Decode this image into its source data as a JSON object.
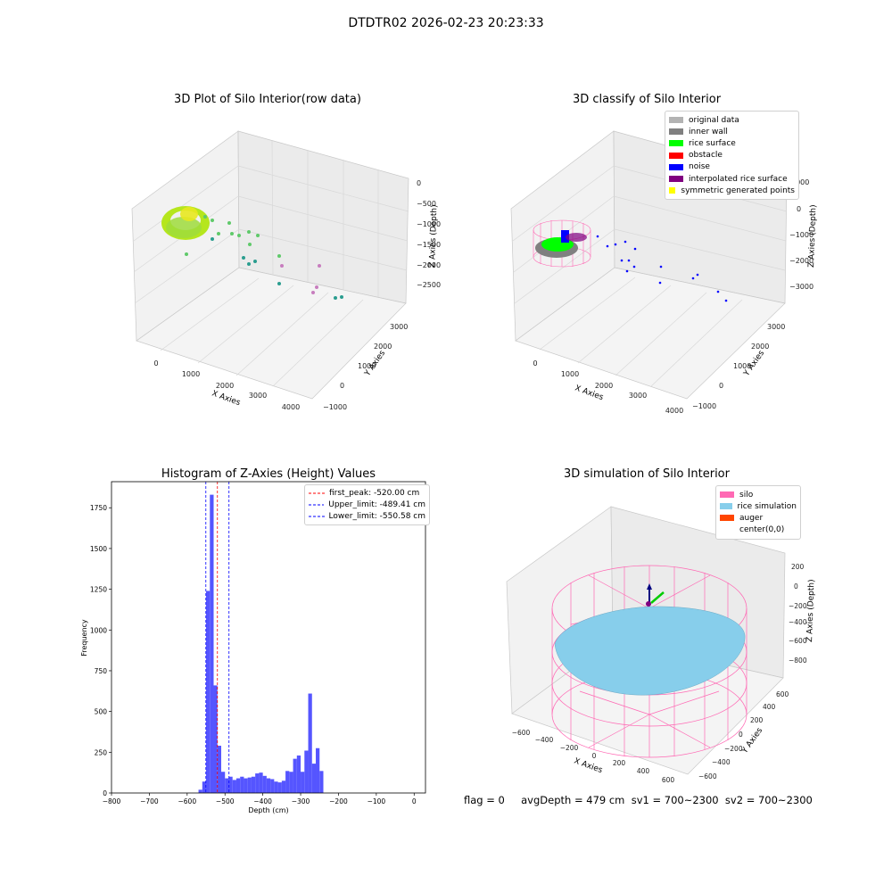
{
  "suptitle": "DTDTR02 2026-02-23 20:23:33",
  "panels": {
    "raw": {
      "title": "3D Plot of Silo Interior(row data)",
      "xlabel": "X Axies",
      "ylabel": "Y Axies",
      "zlabel": "Z Axies (Depth)",
      "xticks": [
        "0",
        "1000",
        "2000",
        "3000",
        "4000"
      ],
      "yticks": [
        "−1000",
        "0",
        "1000",
        "2000",
        "3000"
      ],
      "zticks": [
        "0",
        "−500",
        "−1000",
        "−1500",
        "−2000",
        "−2500"
      ]
    },
    "classify": {
      "title": "3D classify of Silo Interior",
      "xlabel": "X Axies",
      "ylabel": "Y Axies",
      "zlabel": "Z Axies (Depth)",
      "xticks": [
        "0",
        "1000",
        "2000",
        "3000",
        "4000"
      ],
      "yticks": [
        "−1000",
        "0",
        "1000",
        "2000",
        "3000"
      ],
      "zticks": [
        "1000",
        "0",
        "−1000",
        "−2000",
        "−3000"
      ],
      "legend": [
        {
          "label": "original data",
          "color": "#b3b3b3"
        },
        {
          "label": "inner wall",
          "color": "#808080"
        },
        {
          "label": "rice surface",
          "color": "#00ff00"
        },
        {
          "label": "obstacle",
          "color": "#ff0000"
        },
        {
          "label": "noise",
          "color": "#0000ff"
        },
        {
          "label": "interpolated rice surface",
          "color": "#800080"
        },
        {
          "label": "symmetric generated points",
          "color": "#ffff00"
        }
      ]
    },
    "histogram": {
      "title": "Histogram of Z-Axies (Height) Values",
      "legend": [
        {
          "label": "first_peak: -520.00 cm",
          "color": "#ff0000"
        },
        {
          "label": "Upper_limit: -489.41 cm",
          "color": "#0000ff"
        },
        {
          "label": "Lower_limit: -550.58 cm",
          "color": "#0000ff"
        }
      ]
    },
    "simulation": {
      "title": "3D simulation of Silo Interior",
      "xlabel": "X Axies",
      "ylabel": "Y Axies",
      "zlabel": "Z Axies (Depth)",
      "xticks": [
        "−600",
        "−400",
        "−200",
        "0",
        "200",
        "400",
        "600"
      ],
      "yticks": [
        "−600",
        "−400",
        "−200",
        "0",
        "200",
        "400",
        "600"
      ],
      "zticks": [
        "200",
        "0",
        "−200",
        "−400",
        "−600",
        "−800"
      ],
      "legend": [
        {
          "label": "silo",
          "color": "#ff69b4"
        },
        {
          "label": "rice simulation",
          "color": "#87ceeb"
        },
        {
          "label": "auger",
          "color": "#ff4500"
        },
        {
          "label": "center(0,0)",
          "color": ""
        }
      ]
    }
  },
  "footer": "flag = 0     avgDepth = 479 cm  sv1 = 700~2300  sv2 = 700~2300",
  "chart_data": [
    {
      "type": "histogram",
      "title": "Histogram of Z-Axies (Height) Values",
      "xlabel": "Depth (cm)",
      "ylabel": "Frequency",
      "xlim": [
        -800,
        30
      ],
      "ylim": [
        0,
        1910
      ],
      "xticks": [
        -800,
        -700,
        -600,
        -500,
        -400,
        -300,
        -200,
        -100,
        0
      ],
      "yticks": [
        0,
        250,
        500,
        750,
        1000,
        1250,
        1500,
        1750
      ],
      "bar_color": "#5555ff",
      "bins": [
        {
          "x0": -570,
          "x1": -560,
          "count": 20
        },
        {
          "x0": -560,
          "x1": -550,
          "count": 70
        },
        {
          "x0": -550,
          "x1": -540,
          "count": 1240
        },
        {
          "x0": -540,
          "x1": -530,
          "count": 1830
        },
        {
          "x0": -530,
          "x1": -520,
          "count": 660
        },
        {
          "x0": -520,
          "x1": -510,
          "count": 290
        },
        {
          "x0": -510,
          "x1": -500,
          "count": 130
        },
        {
          "x0": -500,
          "x1": -490,
          "count": 90
        },
        {
          "x0": -490,
          "x1": -480,
          "count": 100
        },
        {
          "x0": -480,
          "x1": -470,
          "count": 80
        },
        {
          "x0": -470,
          "x1": -460,
          "count": 90
        },
        {
          "x0": -460,
          "x1": -450,
          "count": 100
        },
        {
          "x0": -450,
          "x1": -440,
          "count": 90
        },
        {
          "x0": -440,
          "x1": -430,
          "count": 95
        },
        {
          "x0": -430,
          "x1": -420,
          "count": 100
        },
        {
          "x0": -420,
          "x1": -410,
          "count": 120
        },
        {
          "x0": -410,
          "x1": -400,
          "count": 125
        },
        {
          "x0": -400,
          "x1": -390,
          "count": 105
        },
        {
          "x0": -390,
          "x1": -380,
          "count": 90
        },
        {
          "x0": -380,
          "x1": -370,
          "count": 85
        },
        {
          "x0": -370,
          "x1": -360,
          "count": 70
        },
        {
          "x0": -360,
          "x1": -350,
          "count": 65
        },
        {
          "x0": -350,
          "x1": -340,
          "count": 75
        },
        {
          "x0": -340,
          "x1": -330,
          "count": 135
        },
        {
          "x0": -330,
          "x1": -320,
          "count": 130
        },
        {
          "x0": -320,
          "x1": -310,
          "count": 210
        },
        {
          "x0": -310,
          "x1": -300,
          "count": 230
        },
        {
          "x0": -300,
          "x1": -290,
          "count": 130
        },
        {
          "x0": -290,
          "x1": -280,
          "count": 260
        },
        {
          "x0": -280,
          "x1": -270,
          "count": 610
        },
        {
          "x0": -270,
          "x1": -260,
          "count": 180
        },
        {
          "x0": -260,
          "x1": -250,
          "count": 275
        },
        {
          "x0": -250,
          "x1": -240,
          "count": 135
        }
      ],
      "vlines": [
        {
          "label": "first_peak: -520.00 cm",
          "x": -520.0,
          "color": "#ff0000"
        },
        {
          "label": "Upper_limit: -489.41 cm",
          "x": -489.41,
          "color": "#0000ff"
        },
        {
          "label": "Lower_limit: -550.58 cm",
          "x": -550.58,
          "color": "#0000ff"
        }
      ],
      "legend_position": "top-right"
    },
    {
      "type": "scatter",
      "title": "3D Plot of Silo Interior(row data)",
      "note_3d": true,
      "xlabel": "X Axies",
      "ylabel": "Y Axies",
      "zlabel": "Z Axies (Depth)"
    },
    {
      "type": "scatter",
      "title": "3D classify of Silo Interior",
      "note_3d": true,
      "xlabel": "X Axies",
      "ylabel": "Y Axies",
      "zlabel": "Z Axies (Depth)"
    },
    {
      "type": "scatter",
      "title": "3D simulation of Silo Interior",
      "note_3d": true,
      "xlabel": "X Axies",
      "ylabel": "Y Axies",
      "zlabel": "Z Axies (Depth)"
    }
  ]
}
